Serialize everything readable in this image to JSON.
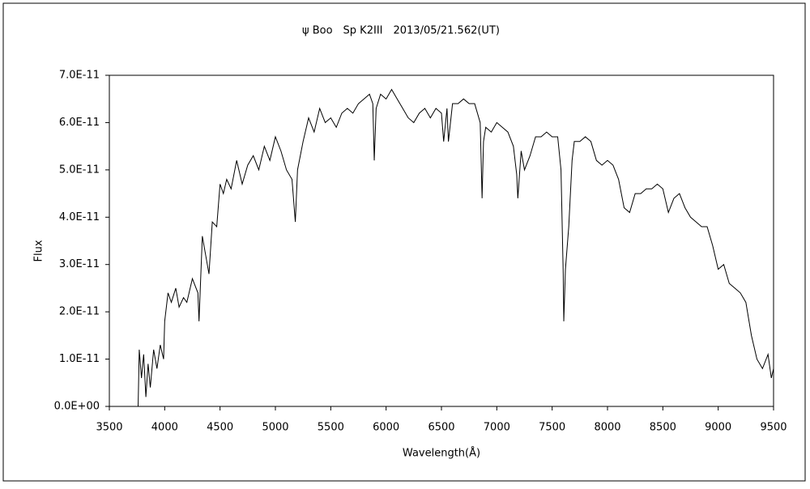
{
  "chart_data": {
    "type": "line",
    "title": "ψ Boo　Sp K2III　2013/05/21.562(UT)",
    "x_label": "Wavelength(Å)",
    "y_label": "Flux",
    "xlim": [
      3500,
      9500
    ],
    "xticks": [
      3500,
      4000,
      4500,
      5000,
      5500,
      6000,
      6500,
      7000,
      7500,
      8000,
      8500,
      9000,
      9500
    ],
    "ylim": [
      0,
      7e-11
    ],
    "yticks": [
      {
        "value": 0,
        "label": "0.0E+00"
      },
      {
        "value": 1e-11,
        "label": "1.0E-11"
      },
      {
        "value": 2e-11,
        "label": "2.0E-11"
      },
      {
        "value": 3e-11,
        "label": "3.0E-11"
      },
      {
        "value": 4e-11,
        "label": "4.0E-11"
      },
      {
        "value": 5e-11,
        "label": "5.0E-11"
      },
      {
        "value": 6e-11,
        "label": "6.0E-11"
      },
      {
        "value": 7e-11,
        "label": "7.0E-11"
      }
    ],
    "color": "#000000",
    "x": [
      3760,
      3770,
      3790,
      3810,
      3830,
      3850,
      3870,
      3900,
      3930,
      3960,
      3990,
      4000,
      4030,
      4060,
      4100,
      4130,
      4170,
      4200,
      4250,
      4300,
      4310,
      4340,
      4370,
      4400,
      4430,
      4470,
      4500,
      4530,
      4560,
      4600,
      4650,
      4700,
      4750,
      4800,
      4850,
      4900,
      4950,
      5000,
      5050,
      5100,
      5150,
      5170,
      5180,
      5200,
      5250,
      5300,
      5350,
      5400,
      5450,
      5500,
      5550,
      5600,
      5650,
      5700,
      5750,
      5800,
      5850,
      5880,
      5893,
      5910,
      5950,
      6000,
      6050,
      6100,
      6150,
      6200,
      6250,
      6300,
      6350,
      6400,
      6450,
      6500,
      6520,
      6550,
      6563,
      6600,
      6650,
      6700,
      6750,
      6800,
      6850,
      6867,
      6880,
      6900,
      6950,
      7000,
      7050,
      7100,
      7150,
      7180,
      7190,
      7220,
      7250,
      7300,
      7350,
      7400,
      7450,
      7500,
      7550,
      7580,
      7600,
      7605,
      7620,
      7650,
      7680,
      7700,
      7750,
      7800,
      7850,
      7900,
      7950,
      8000,
      8050,
      8100,
      8150,
      8200,
      8250,
      8300,
      8350,
      8400,
      8450,
      8500,
      8550,
      8600,
      8650,
      8700,
      8750,
      8800,
      8850,
      8900,
      8950,
      9000,
      9050,
      9100,
      9150,
      9200,
      9250,
      9300,
      9350,
      9400,
      9450,
      9480,
      9500
    ],
    "values": [
      0,
      1.2e-11,
      6e-12,
      1.1e-11,
      2e-12,
      9e-12,
      4e-12,
      1.2e-11,
      8e-12,
      1.3e-11,
      1e-11,
      1.8e-11,
      2.4e-11,
      2.2e-11,
      2.5e-11,
      2.1e-11,
      2.3e-11,
      2.2e-11,
      2.7e-11,
      2.4e-11,
      1.8e-11,
      3.6e-11,
      3.2e-11,
      2.8e-11,
      3.9e-11,
      3.8e-11,
      4.7e-11,
      4.5e-11,
      4.8e-11,
      4.6e-11,
      5.2e-11,
      4.7e-11,
      5.1e-11,
      5.3e-11,
      5e-11,
      5.5e-11,
      5.2e-11,
      5.7e-11,
      5.4e-11,
      5e-11,
      4.8e-11,
      4.2e-11,
      3.9e-11,
      5e-11,
      5.6e-11,
      6.1e-11,
      5.8e-11,
      6.3e-11,
      6e-11,
      6.1e-11,
      5.9e-11,
      6.2e-11,
      6.3e-11,
      6.2e-11,
      6.4e-11,
      6.5e-11,
      6.6e-11,
      6.4e-11,
      5.2e-11,
      6.3e-11,
      6.6e-11,
      6.5e-11,
      6.7e-11,
      6.5e-11,
      6.3e-11,
      6.1e-11,
      6e-11,
      6.2e-11,
      6.3e-11,
      6.1e-11,
      6.3e-11,
      6.2e-11,
      5.6e-11,
      6.3e-11,
      5.6e-11,
      6.4e-11,
      6.4e-11,
      6.5e-11,
      6.4e-11,
      6.4e-11,
      6e-11,
      4.4e-11,
      5.6e-11,
      5.9e-11,
      5.8e-11,
      6e-11,
      5.9e-11,
      5.8e-11,
      5.5e-11,
      4.9e-11,
      4.4e-11,
      5.4e-11,
      5e-11,
      5.3e-11,
      5.7e-11,
      5.7e-11,
      5.8e-11,
      5.7e-11,
      5.7e-11,
      5e-11,
      2.8e-11,
      1.8e-11,
      2.9e-11,
      3.8e-11,
      5.2e-11,
      5.6e-11,
      5.6e-11,
      5.7e-11,
      5.6e-11,
      5.2e-11,
      5.1e-11,
      5.2e-11,
      5.1e-11,
      4.8e-11,
      4.2e-11,
      4.1e-11,
      4.5e-11,
      4.5e-11,
      4.6e-11,
      4.6e-11,
      4.7e-11,
      4.6e-11,
      4.1e-11,
      4.4e-11,
      4.5e-11,
      4.2e-11,
      4e-11,
      3.9e-11,
      3.8e-11,
      3.8e-11,
      3.4e-11,
      2.9e-11,
      3e-11,
      2.6e-11,
      2.5e-11,
      2.4e-11,
      2.2e-11,
      1.5e-11,
      1e-11,
      8e-12,
      1.1e-11,
      6e-12,
      8e-12
    ]
  }
}
